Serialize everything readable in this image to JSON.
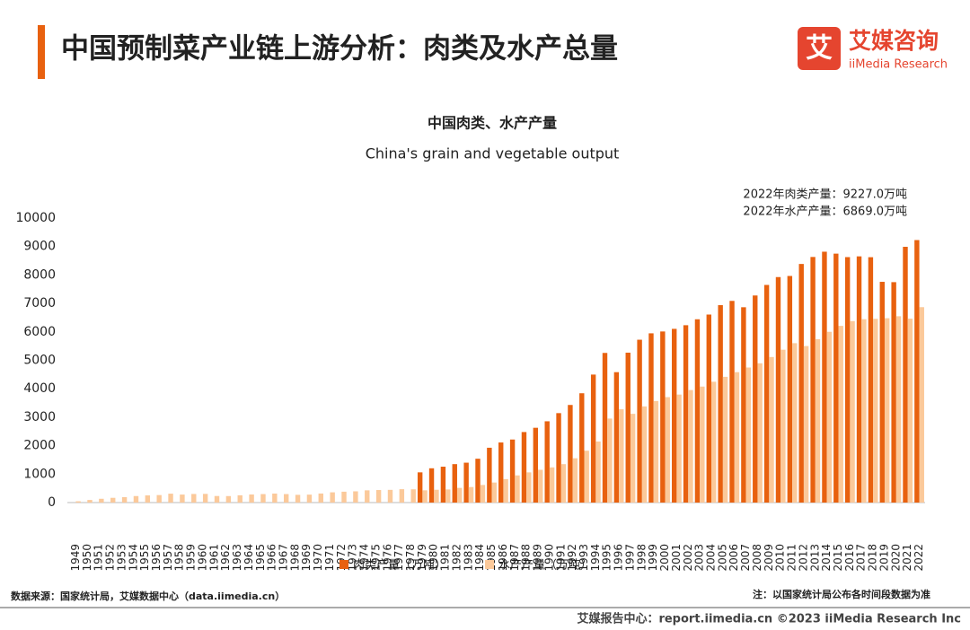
{
  "header": {
    "title": "中国预制菜产业链上游分析：肉类及水产总量",
    "logo_icon": "艾",
    "logo_name": "艾媒咨询",
    "logo_en": "iiMedia Research"
  },
  "chart_data": {
    "type": "bar",
    "title": "中国肉类、水产产量",
    "subtitle": "China's grain and vegetable output",
    "annotations": [
      "2022年肉类产量：9227.0万吨",
      "2022年水产产量：6869.0万吨"
    ],
    "categories": [
      "1949",
      "1950",
      "1951",
      "1952",
      "1953",
      "1954",
      "1955",
      "1956",
      "1957",
      "1958",
      "1959",
      "1960",
      "1961",
      "1962",
      "1963",
      "1964",
      "1965",
      "1966",
      "1967",
      "1968",
      "1969",
      "1970",
      "1971",
      "1972",
      "1973",
      "1974",
      "1975",
      "1976",
      "1977",
      "1978",
      "1979",
      "1980",
      "1981",
      "1982",
      "1983",
      "1984",
      "1985",
      "1986",
      "1987",
      "1988",
      "1989",
      "1990",
      "1991",
      "1992",
      "1993",
      "1994",
      "1995",
      "1996",
      "1997",
      "1998",
      "1999",
      "2000",
      "2001",
      "2002",
      "2003",
      "2004",
      "2005",
      "2006",
      "2007",
      "2008",
      "2009",
      "2010",
      "2011",
      "2012",
      "2013",
      "2014",
      "2015",
      "2016",
      "2017",
      "2018",
      "2019",
      "2020",
      "2021",
      "2022"
    ],
    "series": [
      {
        "name": "肉类产量（万吨）",
        "color": "#e8610f",
        "values": [
          null,
          null,
          null,
          null,
          null,
          null,
          null,
          null,
          null,
          null,
          null,
          null,
          null,
          null,
          null,
          null,
          null,
          null,
          null,
          null,
          null,
          null,
          null,
          null,
          null,
          null,
          null,
          null,
          null,
          null,
          1062,
          1205,
          1261,
          1351,
          1402,
          1541,
          1927,
          2112,
          2216,
          2479,
          2629,
          2857,
          3144,
          3431,
          3842,
          4499,
          5260,
          4584,
          5269,
          5724,
          5949,
          6014,
          6106,
          6234,
          6443,
          6609,
          6939,
          7089,
          6866,
          7279,
          7650,
          7926,
          7965,
          8387,
          8633,
          8818,
          8750,
          8628,
          8654,
          8625,
          7759,
          7748,
          8990,
          9227
        ]
      },
      {
        "name": "水产产量（万吨）",
        "color": "#fbc99a",
        "values": [
          45,
          91,
          133,
          167,
          190,
          229,
          252,
          264,
          312,
          281,
          302,
          305,
          231,
          228,
          256,
          284,
          298,
          316,
          298,
          272,
          279,
          318,
          360,
          382,
          395,
          430,
          441,
          447,
          470,
          466,
          431,
          450,
          461,
          516,
          546,
          619,
          705,
          824,
          955,
          1061,
          1152,
          1237,
          1351,
          1557,
          1823,
          2146,
          2953,
          3280,
          3120,
          3380,
          3570,
          3706,
          3796,
          3955,
          4077,
          4247,
          4420,
          4584,
          4748,
          4896,
          5116,
          5373,
          5603,
          5502,
          5744,
          6002,
          6211,
          6379,
          6445,
          6458,
          6480,
          6549,
          6464,
          6869
        ]
      }
    ],
    "ylim": [
      0,
      10000
    ],
    "yticks": [
      0,
      1000,
      2000,
      3000,
      4000,
      5000,
      6000,
      7000,
      8000,
      9000,
      10000
    ],
    "grid": false
  },
  "footer": {
    "source": "数据来源：国家统计局，艾媒数据中心（data.iimedia.cn）",
    "note": "注：以国家统计局公布各时间段数据为准",
    "copyright": "艾媒报告中心：report.iimedia.cn  ©2023  iiMedia Research Inc"
  }
}
